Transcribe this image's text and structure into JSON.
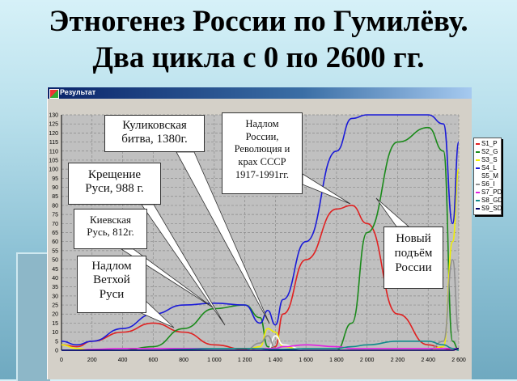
{
  "slide": {
    "title_line1": "Этногенез России по Гумилёву.",
    "title_line2": "Два цикла с 0 по 2600 гг."
  },
  "window": {
    "title": "Результат",
    "icon": "app-chart-icon"
  },
  "callouts": [
    {
      "id": "kulikovo",
      "text_line1": "Куликовская",
      "text_line2": "битва, 1380г."
    },
    {
      "id": "baptism",
      "text_line1": "Крещение",
      "text_line2": "Руси, 988 г."
    },
    {
      "id": "kievan",
      "text_line1": "Киевская",
      "text_line2": "Русь, 812г."
    },
    {
      "id": "breakdown-old",
      "text_line1": "Надлом",
      "text_line2": "Ветхой",
      "text_line3": "Руси"
    },
    {
      "id": "breakdown-russia",
      "text_line1": "Надлом",
      "text_line2": "России,",
      "text_line3": "Революция и",
      "text_line4": "крах СССР",
      "text_line5": "1917-1991гг."
    },
    {
      "id": "new-rise",
      "text_line1": "Новый",
      "text_line2": "подъём",
      "text_line3": "России"
    }
  ],
  "legend": [
    {
      "label": "S1_P",
      "color": "#e02020"
    },
    {
      "label": "S2_G",
      "color": "#1a8a1a"
    },
    {
      "label": "S3_S",
      "color": "#f0f000"
    },
    {
      "label": "S4_L",
      "color": "#1a1ad8"
    },
    {
      "label": "S5_M",
      "color": "#ffffff"
    },
    {
      "label": "S6_I",
      "color": "#909090"
    },
    {
      "label": "S7_PD",
      "color": "#e020e0"
    },
    {
      "label": "S8_GD",
      "color": "#108a8a"
    },
    {
      "label": "S9_SD",
      "color": "#00006a"
    }
  ],
  "chart_data": {
    "type": "line",
    "title": "Этногенез России по Гумилёву. Два цикла с 0 по 2600 гг.",
    "xlabel": "",
    "ylabel": "",
    "xlim": [
      0,
      2600
    ],
    "ylim": [
      0,
      130
    ],
    "x_ticks": [
      "0",
      "200",
      "400",
      "600",
      "800",
      "1 000",
      "1 200",
      "1 400",
      "1 600",
      "1 800",
      "2 000",
      "2 200",
      "2 400",
      "2 600"
    ],
    "y_ticks": [
      "0",
      "5",
      "10",
      "15",
      "20",
      "25",
      "30",
      "35",
      "40",
      "45",
      "50",
      "55",
      "60",
      "65",
      "70",
      "75",
      "80",
      "85",
      "90",
      "95",
      "100",
      "105",
      "110",
      "115",
      "120",
      "125",
      "130"
    ],
    "grid": true,
    "legend_position": "right",
    "x": [
      0,
      100,
      200,
      400,
      600,
      800,
      1000,
      1200,
      1300,
      1350,
      1400,
      1450,
      1600,
      1800,
      1900,
      2000,
      2200,
      2400,
      2500,
      2560,
      2600
    ],
    "series": [
      {
        "name": "S1_P",
        "values": [
          3,
          2,
          5,
          10,
          15,
          10,
          3,
          0.5,
          0,
          0,
          2,
          20,
          50,
          78,
          80,
          70,
          20,
          3,
          1,
          0,
          0
        ]
      },
      {
        "name": "S2_G",
        "values": [
          0,
          0,
          0,
          0,
          2,
          12,
          23,
          25,
          18,
          2,
          0,
          0,
          0,
          0,
          15,
          65,
          115,
          123,
          110,
          5,
          0
        ]
      },
      {
        "name": "S3_S",
        "values": [
          3,
          1,
          0,
          0,
          0,
          0,
          0,
          0,
          2,
          12,
          10,
          2,
          0,
          0,
          0,
          0,
          0,
          0,
          2,
          60,
          100
        ]
      },
      {
        "name": "S4_L",
        "values": [
          5,
          3,
          5,
          12,
          20,
          25,
          26,
          25,
          15,
          22,
          14,
          28,
          60,
          110,
          128,
          130,
          130,
          130,
          125,
          70,
          115
        ]
      },
      {
        "name": "S5_M",
        "values": [
          0,
          0,
          0,
          0,
          0,
          0,
          0,
          0,
          0,
          0,
          8,
          3,
          0,
          0,
          0,
          0,
          0,
          0,
          0,
          0,
          0
        ]
      },
      {
        "name": "S6_I",
        "values": [
          0,
          0,
          0,
          0,
          0,
          0,
          0,
          0,
          4,
          8,
          1,
          0,
          0,
          0,
          0,
          0,
          0,
          0,
          5,
          50,
          10
        ]
      },
      {
        "name": "S7_PD",
        "values": [
          0,
          0,
          0.5,
          1,
          1,
          1,
          1,
          1,
          1,
          1,
          1,
          2,
          3,
          2,
          1,
          1,
          1,
          1,
          1,
          1,
          1
        ]
      },
      {
        "name": "S8_GD",
        "values": [
          0,
          0,
          0,
          0,
          0,
          0.5,
          1,
          1,
          1,
          0.5,
          0.5,
          0.5,
          1,
          1,
          2,
          3,
          5,
          5,
          3,
          1,
          0
        ]
      },
      {
        "name": "S9_SD",
        "values": [
          0,
          0,
          0,
          0,
          0,
          0,
          0,
          0,
          0,
          0,
          0,
          0,
          0,
          0,
          0,
          0,
          0,
          0,
          0,
          0,
          1
        ]
      }
    ],
    "annotations": [
      "Куликовская битва, 1380г.",
      "Крещение Руси, 988 г.",
      "Киевская Русь, 812г.",
      "Надлом Ветхой Руси",
      "Надлом России, Революция и крах СССР 1917-1991гг.",
      "Новый подъём России"
    ]
  }
}
